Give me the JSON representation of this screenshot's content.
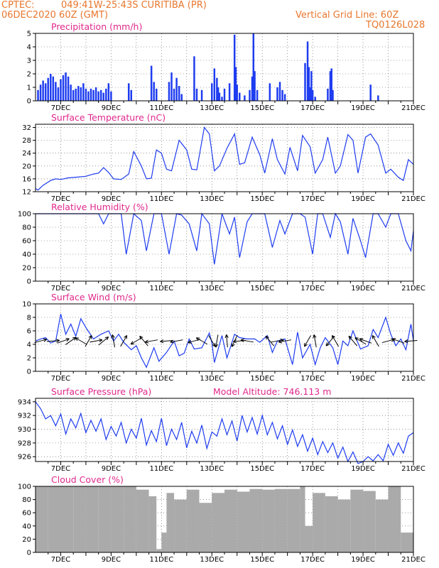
{
  "header": {
    "agency": "CPTEC:",
    "location": "049:41W-25:43S   CURITIBA (PR)",
    "run": "06DEC2020 60Z (GMT)",
    "grid_note": "Vertical Grid Line: 60Z",
    "code": "TQ0126L028"
  },
  "colors": {
    "header": "#e8772e",
    "title": "#e0288c",
    "series": "#1e3cf0",
    "cloud": "#aaaaaa"
  },
  "chart_data": [
    {
      "id": "precip",
      "type": "bar",
      "title": "Precipitation (mm/h)",
      "x_ticks": [
        "7DEC",
        "9DEC",
        "11DEC",
        "13DEC",
        "15DEC",
        "17DEC",
        "19DEC",
        "21DEC"
      ],
      "ylim": [
        0,
        5
      ],
      "y_ticks": [
        0,
        1,
        2,
        3,
        4,
        5
      ],
      "xlim": [
        6,
        21
      ],
      "grid": true,
      "x": [
        6.1,
        6.2,
        6.3,
        6.4,
        6.5,
        6.6,
        6.7,
        6.8,
        6.9,
        7.0,
        7.1,
        7.2,
        7.3,
        7.4,
        7.5,
        7.6,
        7.7,
        7.8,
        7.9,
        8.0,
        8.1,
        8.2,
        8.3,
        8.4,
        8.5,
        8.6,
        8.7,
        8.8,
        8.9,
        9.0,
        9.7,
        9.8,
        10.6,
        10.7,
        10.8,
        11.3,
        11.4,
        11.5,
        11.6,
        11.7,
        11.8,
        12.3,
        12.4,
        12.6,
        13.0,
        13.1,
        13.2,
        13.25,
        13.3,
        13.4,
        13.5,
        13.7,
        13.9,
        13.95,
        14.0,
        14.1,
        14.3,
        14.5,
        14.6,
        14.65,
        14.7,
        14.8,
        15.3,
        15.6,
        15.7,
        15.8,
        15.9,
        16.7,
        16.8,
        16.85,
        16.9,
        16.95,
        17.0,
        17.1,
        17.6,
        17.7,
        17.75,
        17.8,
        19.3,
        19.6
      ],
      "values": [
        0.8,
        1.2,
        1.5,
        1.3,
        1.7,
        2.0,
        1.8,
        1.4,
        1.0,
        1.6,
        1.9,
        2.1,
        1.8,
        1.2,
        0.8,
        0.9,
        1.1,
        1.0,
        1.3,
        0.9,
        0.7,
        0.9,
        0.8,
        1.0,
        0.7,
        0.8,
        0.6,
        0.9,
        1.3,
        0.7,
        1.3,
        0.8,
        2.6,
        1.4,
        0.9,
        1.4,
        2.1,
        0.9,
        1.7,
        1.1,
        0.5,
        3.3,
        0.9,
        0.8,
        1.3,
        2.4,
        1.7,
        1.0,
        0.6,
        0.3,
        0.9,
        1.3,
        4.9,
        2.5,
        1.2,
        0.6,
        0.4,
        0.8,
        1.8,
        5.0,
        2.2,
        0.8,
        1.3,
        1.0,
        1.4,
        0.8,
        0.5,
        2.8,
        4.4,
        2.5,
        1.0,
        2.2,
        0.8,
        0.3,
        0.9,
        2.2,
        2.4,
        0.8,
        1.2,
        0.4
      ]
    },
    {
      "id": "temp",
      "type": "line",
      "title": "Surface Temperature (nC)",
      "x_ticks": [
        "7DEC",
        "9DEC",
        "11DEC",
        "13DEC",
        "15DEC",
        "17DEC",
        "19DEC",
        "21DEC"
      ],
      "ylim": [
        12,
        33
      ],
      "y_ticks": [
        12,
        16,
        20,
        24,
        28,
        32
      ],
      "xlim": [
        6,
        21
      ],
      "grid": true,
      "x": [
        6.0,
        6.1,
        6.3,
        6.6,
        6.8,
        7.0,
        7.3,
        7.6,
        8.0,
        8.3,
        8.5,
        8.7,
        8.9,
        9.1,
        9.4,
        9.7,
        9.9,
        10.2,
        10.4,
        10.6,
        10.8,
        11.0,
        11.2,
        11.4,
        11.7,
        12.0,
        12.2,
        12.4,
        12.7,
        12.9,
        13.1,
        13.3,
        13.6,
        13.9,
        14.1,
        14.3,
        14.6,
        14.9,
        15.1,
        15.4,
        15.6,
        15.9,
        16.1,
        16.4,
        16.6,
        16.9,
        17.1,
        17.4,
        17.6,
        17.9,
        18.1,
        18.4,
        18.6,
        18.8,
        19.1,
        19.3,
        19.6,
        19.9,
        20.1,
        20.4,
        20.6,
        20.8,
        21.0
      ],
      "values": [
        13,
        12.5,
        14,
        15.5,
        16,
        15.8,
        16.3,
        16.5,
        16.8,
        17.5,
        17.8,
        19.5,
        18,
        16,
        15.8,
        17.5,
        24.5,
        20,
        16,
        16.2,
        25,
        24,
        19,
        18.5,
        28,
        25,
        19,
        18.8,
        32,
        30,
        18.5,
        20,
        25.5,
        30,
        20.5,
        21,
        29,
        23.5,
        17.8,
        28.5,
        22,
        17.5,
        25.8,
        18.5,
        29.5,
        26,
        17.8,
        22,
        29,
        17.8,
        20,
        29.8,
        28,
        17.8,
        29,
        30,
        26.5,
        17.8,
        19,
        16.5,
        15.5,
        22,
        20.5
      ]
    },
    {
      "id": "rh",
      "type": "line",
      "title": "Relative Humidity (%)",
      "x_ticks": [
        "7DEC",
        "9DEC",
        "11DEC",
        "13DEC",
        "15DEC",
        "17DEC",
        "19DEC",
        "21DEC"
      ],
      "ylim": [
        0,
        100
      ],
      "y_ticks": [
        0,
        20,
        40,
        60,
        80,
        100
      ],
      "xlim": [
        6,
        21
      ],
      "grid": true,
      "x": [
        6.0,
        8.5,
        8.7,
        8.9,
        9.1,
        9.4,
        9.6,
        9.9,
        10.2,
        10.4,
        10.7,
        11.0,
        11.3,
        11.6,
        11.8,
        12.1,
        12.4,
        12.6,
        12.9,
        13.1,
        13.4,
        13.7,
        13.9,
        14.1,
        14.4,
        14.6,
        14.8,
        15.1,
        15.4,
        15.7,
        15.9,
        16.2,
        16.5,
        16.7,
        17.0,
        17.2,
        17.4,
        17.7,
        17.9,
        18.1,
        18.4,
        18.6,
        18.9,
        19.1,
        19.4,
        19.6,
        19.9,
        20.1,
        20.4,
        20.7,
        20.9,
        21.0
      ],
      "values": [
        100,
        100,
        85,
        100,
        100,
        100,
        40,
        100,
        90,
        45,
        100,
        100,
        40,
        100,
        98,
        85,
        45,
        100,
        85,
        25,
        100,
        70,
        95,
        35,
        88,
        100,
        100,
        100,
        50,
        90,
        70,
        100,
        100,
        95,
        40,
        100,
        100,
        65,
        100,
        88,
        40,
        93,
        60,
        35,
        100,
        100,
        80,
        100,
        100,
        60,
        45,
        75
      ]
    },
    {
      "id": "wind",
      "type": "line",
      "title": "Surface Wind (m/s)",
      "x_ticks": [
        "7DEC",
        "9DEC",
        "11DEC",
        "13DEC",
        "15DEC",
        "17DEC",
        "19DEC",
        "21DEC"
      ],
      "ylim": [
        0,
        10
      ],
      "y_ticks": [
        0,
        2,
        4,
        6,
        8,
        10
      ],
      "xlim": [
        6,
        21
      ],
      "grid": true,
      "x": [
        6.0,
        6.2,
        6.4,
        6.6,
        6.8,
        7.0,
        7.2,
        7.4,
        7.6,
        7.8,
        8.0,
        8.3,
        8.6,
        8.9,
        9.1,
        9.3,
        9.5,
        9.8,
        10.0,
        10.2,
        10.4,
        10.7,
        10.9,
        11.2,
        11.5,
        11.7,
        11.9,
        12.1,
        12.3,
        12.6,
        12.9,
        13.0,
        13.1,
        13.4,
        13.6,
        13.9,
        14.1,
        14.4,
        14.7,
        14.9,
        15.2,
        15.4,
        15.6,
        15.9,
        16.2,
        16.4,
        16.6,
        16.9,
        17.1,
        17.3,
        17.5,
        17.8,
        18.0,
        18.2,
        18.4,
        18.6,
        18.9,
        19.2,
        19.4,
        19.6,
        19.9,
        20.1,
        20.3,
        20.5,
        20.7,
        20.9,
        21.0
      ],
      "values": [
        4.5,
        4.8,
        5.0,
        4.2,
        4.5,
        8.5,
        5.5,
        7.0,
        5.2,
        7.8,
        6.5,
        4.8,
        5.5,
        6.0,
        4.5,
        5.5,
        4.3,
        3.2,
        3.8,
        2.0,
        0.6,
        3.5,
        1.5,
        2.8,
        4.5,
        2.3,
        2.7,
        4.8,
        3.3,
        3.5,
        5.7,
        4.2,
        1.3,
        5.3,
        2.0,
        5.5,
        5.0,
        4.8,
        4.8,
        4.3,
        5.3,
        2.8,
        4.5,
        4.8,
        1.0,
        5.8,
        2.0,
        4.0,
        1.0,
        3.5,
        5.0,
        3.5,
        1.0,
        4.5,
        3.8,
        6.0,
        3.3,
        3.8,
        6.2,
        5.0,
        8.0,
        5.5,
        3.8,
        4.8,
        3.2,
        7.0,
        4.5
      ],
      "arrow_x": [
        6.2,
        6.7,
        7.1,
        7.4,
        7.8,
        8.1,
        8.4,
        8.7,
        9.1,
        9.5,
        10.0,
        10.3,
        10.6,
        11.2,
        11.6,
        12.3,
        12.6,
        13.0,
        13.2,
        13.6,
        13.9,
        14.1,
        14.4,
        15.3,
        15.6,
        15.9,
        16.8,
        17.1,
        17.7,
        17.9,
        18.6,
        18.9,
        19.1,
        19.5,
        20.0,
        20.4,
        20.9
      ],
      "arrow_deg": [
        -15,
        -5,
        -20,
        -35,
        -150,
        -60,
        -10,
        -40,
        -100,
        -60,
        150,
        -130,
        170,
        175,
        170,
        165,
        -150,
        60,
        100,
        -95,
        115,
        175,
        -170,
        -130,
        -10,
        170,
        120,
        -100,
        130,
        -120,
        -130,
        -150,
        -160,
        -120,
        -15,
        -160,
        175
      ]
    },
    {
      "id": "pres",
      "type": "line",
      "title": "Surface Pressure (hPa)",
      "subtitle": "Model Altitude: 746.113 m",
      "x_ticks": [
        "7DEC",
        "9DEC",
        "11DEC",
        "13DEC",
        "15DEC",
        "17DEC",
        "19DEC",
        "21DEC"
      ],
      "ylim": [
        925.3,
        934.5
      ],
      "y_ticks": [
        926,
        928,
        930,
        932,
        934
      ],
      "xlim": [
        6,
        21
      ],
      "grid": true,
      "x": [
        6.0,
        6.2,
        6.4,
        6.6,
        6.8,
        7.0,
        7.2,
        7.4,
        7.6,
        7.8,
        8.0,
        8.2,
        8.4,
        8.6,
        8.8,
        9.0,
        9.2,
        9.4,
        9.6,
        9.8,
        10.0,
        10.2,
        10.4,
        10.6,
        10.8,
        11.0,
        11.2,
        11.4,
        11.6,
        11.8,
        12.0,
        12.2,
        12.4,
        12.6,
        12.8,
        13.0,
        13.2,
        13.4,
        13.6,
        13.8,
        14.0,
        14.2,
        14.4,
        14.6,
        14.8,
        15.0,
        15.2,
        15.4,
        15.6,
        15.8,
        16.0,
        16.2,
        16.4,
        16.6,
        16.8,
        17.0,
        17.2,
        17.4,
        17.6,
        17.8,
        18.0,
        18.2,
        18.4,
        18.6,
        18.8,
        19.0,
        19.2,
        19.4,
        19.6,
        19.8,
        20.0,
        20.2,
        20.4,
        20.6,
        20.8,
        21.0
      ],
      "values": [
        934,
        933,
        931.5,
        932,
        930.5,
        932.2,
        929.3,
        931.5,
        930.2,
        932.3,
        929.5,
        931.3,
        929.7,
        931.5,
        928.5,
        930.4,
        929,
        931,
        928,
        930,
        928.7,
        931.6,
        927.7,
        929.8,
        928.2,
        931.6,
        927.6,
        930,
        928.5,
        931,
        927.3,
        929.7,
        928,
        930.6,
        927.2,
        929.6,
        929,
        931.5,
        929.2,
        931.2,
        928.3,
        932,
        929.6,
        931.7,
        929.3,
        932,
        929.2,
        931,
        928.6,
        930.5,
        927.8,
        929.9,
        927.5,
        929.2,
        926.8,
        928.7,
        926.3,
        928.2,
        926.6,
        928,
        925.8,
        927.4,
        925.3,
        926.7,
        925,
        925.3,
        926,
        925.4,
        926.3,
        925.4,
        927.8,
        926.2,
        928,
        926.5,
        929,
        929.5
      ]
    },
    {
      "id": "cloud",
      "type": "bar",
      "title": "Cloud Cover (%)",
      "x_ticks": [
        "7DEC",
        "9DEC",
        "11DEC",
        "13DEC",
        "15DEC",
        "17DEC",
        "19DEC",
        "21DEC"
      ],
      "ylim": [
        0,
        100
      ],
      "y_ticks": [
        0,
        20,
        40,
        60,
        80,
        100
      ],
      "xlim": [
        6,
        21
      ],
      "grid": true,
      "x": [
        6.0,
        6.5,
        7.0,
        7.5,
        8.0,
        8.5,
        9.0,
        9.5,
        10.0,
        10.5,
        10.8,
        11.0,
        11.2,
        11.5,
        12.0,
        12.5,
        13.0,
        13.5,
        14.0,
        14.5,
        15.0,
        15.5,
        16.0,
        16.5,
        16.7,
        17.0,
        17.5,
        18.0,
        18.5,
        19.0,
        19.5,
        20.0,
        20.5,
        21.0
      ],
      "values": [
        100,
        100,
        100,
        100,
        100,
        100,
        100,
        100,
        95,
        85,
        5,
        30,
        90,
        80,
        95,
        75,
        90,
        95,
        92,
        96,
        95,
        96,
        96,
        100,
        40,
        90,
        85,
        80,
        95,
        93,
        80,
        100,
        30,
        60
      ]
    }
  ]
}
